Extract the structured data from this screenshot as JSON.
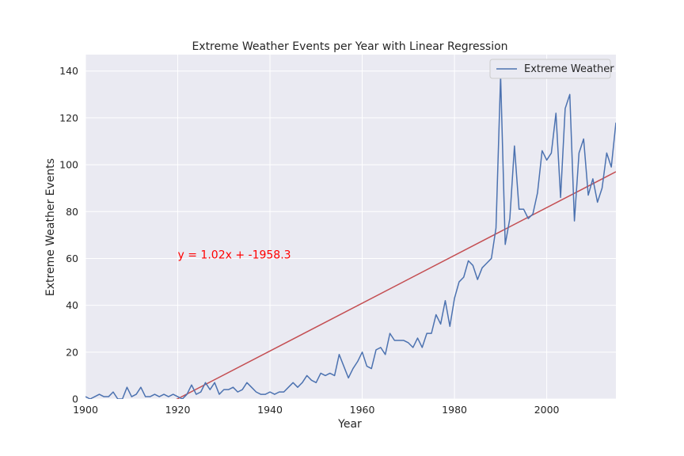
{
  "chart_data": {
    "type": "line",
    "title": "Extreme Weather Events per Year with Linear Regression",
    "xlabel": "Year",
    "ylabel": "Extreme Weather Events",
    "xlim": [
      1900,
      2015
    ],
    "ylim": [
      0,
      147
    ],
    "grid": true,
    "legend_placement": "top-right",
    "x_ticks": [
      1900,
      1920,
      1940,
      1960,
      1980,
      2000
    ],
    "y_ticks": [
      0,
      20,
      40,
      60,
      80,
      100,
      120,
      140
    ],
    "colors": {
      "series": "#4c72b0",
      "regression": "#c44e52",
      "annotation": "#ff0000",
      "plot_bg": "#eaeaf2",
      "grid": "#ffffff"
    },
    "series": [
      {
        "name": "Extreme Weather",
        "x": [
          1900,
          1901,
          1902,
          1903,
          1904,
          1905,
          1906,
          1907,
          1908,
          1909,
          1910,
          1911,
          1912,
          1913,
          1914,
          1915,
          1916,
          1917,
          1918,
          1919,
          1920,
          1921,
          1922,
          1923,
          1924,
          1925,
          1926,
          1927,
          1928,
          1929,
          1930,
          1931,
          1932,
          1933,
          1934,
          1935,
          1936,
          1937,
          1938,
          1939,
          1940,
          1941,
          1942,
          1943,
          1944,
          1945,
          1946,
          1947,
          1948,
          1949,
          1950,
          1951,
          1952,
          1953,
          1954,
          1955,
          1956,
          1957,
          1958,
          1959,
          1960,
          1961,
          1962,
          1963,
          1964,
          1965,
          1966,
          1967,
          1968,
          1969,
          1970,
          1971,
          1972,
          1973,
          1974,
          1975,
          1976,
          1977,
          1978,
          1979,
          1980,
          1981,
          1982,
          1983,
          1984,
          1985,
          1986,
          1987,
          1988,
          1989,
          1990,
          1991,
          1992,
          1993,
          1994,
          1995,
          1996,
          1997,
          1998,
          1999,
          2000,
          2001,
          2002,
          2003,
          2004,
          2005,
          2006,
          2007,
          2008,
          2009,
          2010,
          2011,
          2012,
          2013,
          2014,
          2015
        ],
        "values": [
          1,
          0,
          1,
          2,
          1,
          1,
          3,
          0,
          0,
          5,
          1,
          2,
          5,
          1,
          1,
          2,
          1,
          2,
          1,
          2,
          1,
          0,
          2,
          6,
          2,
          3,
          7,
          4,
          7,
          2,
          4,
          4,
          5,
          3,
          4,
          7,
          5,
          3,
          2,
          2,
          3,
          2,
          3,
          3,
          5,
          7,
          5,
          7,
          10,
          8,
          7,
          11,
          10,
          11,
          10,
          19,
          14,
          9,
          13,
          16,
          20,
          14,
          13,
          21,
          22,
          19,
          28,
          25,
          25,
          25,
          24,
          22,
          26,
          22,
          28,
          28,
          36,
          32,
          42,
          31,
          43,
          50,
          52,
          59,
          57,
          51,
          56,
          58,
          60,
          73,
          138,
          66,
          77,
          108,
          81,
          81,
          77,
          79,
          88,
          106,
          102,
          105,
          122,
          86,
          124,
          130,
          76,
          105,
          111,
          87,
          94,
          84,
          90,
          105,
          99,
          118
        ]
      }
    ],
    "regression": {
      "slope": 1.02,
      "intercept": -1958.3,
      "label": "y = 1.02x + -1958.3",
      "label_position": [
        1920,
        60
      ]
    }
  }
}
